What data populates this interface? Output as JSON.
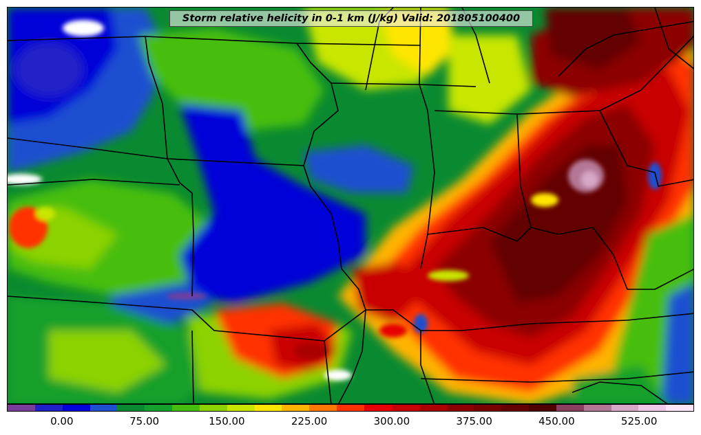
{
  "title": "Storm relative helicity in 0-1 km (J/kg) Valid: 201805100400",
  "colorbar": {
    "colors": [
      "#7a3c9a",
      "#2020c8",
      "#0000d8",
      "#1e50d0",
      "#0a8a30",
      "#14a02c",
      "#46be10",
      "#8cd200",
      "#c8e600",
      "#ffe600",
      "#ffb400",
      "#ff7800",
      "#ff3200",
      "#e60000",
      "#c80000",
      "#aa0000",
      "#8c0000",
      "#780000",
      "#640000",
      "#500000",
      "#8c4060",
      "#b47896",
      "#d8a8c8",
      "#f0c8e8",
      "#fae6f6"
    ],
    "tick_labels": [
      "0.00",
      "75.00",
      "150.00",
      "225.00",
      "300.00",
      "375.00",
      "450.00",
      "525.00"
    ],
    "tick_values": [
      0,
      75,
      150,
      225,
      300,
      375,
      450,
      525
    ],
    "range": [
      -50,
      575
    ]
  },
  "map": {
    "region": "central and eastern United States",
    "overlay": "state boundaries"
  }
}
